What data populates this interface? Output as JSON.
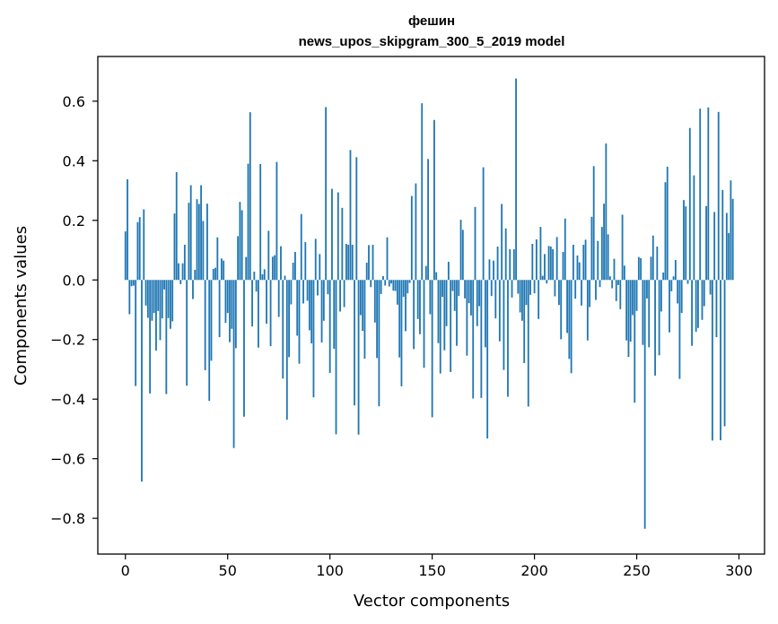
{
  "chart_data": {
    "type": "bar",
    "title": "фешин",
    "subtitle": "news_upos_skipgram_300_5_2019 model",
    "xlabel": "Vector components",
    "ylabel": "Components values",
    "xlim": [
      -13.5,
      312.5
    ],
    "ylim": [
      -0.92,
      0.75
    ],
    "xticks": [
      0,
      50,
      100,
      150,
      200,
      250,
      300
    ],
    "yticks": [
      -0.8,
      -0.6,
      -0.4,
      -0.2,
      0.0,
      0.2,
      0.4,
      0.6
    ],
    "ytick_labels": [
      "−0.8",
      "−0.6",
      "−0.4",
      "−0.2",
      "0.0",
      "0.2",
      "0.4",
      "0.6"
    ],
    "bar_color": "#1f77b4",
    "grid": false,
    "x": "0..299",
    "values": [
      0.163,
      0.338,
      -0.115,
      -0.021,
      -0.019,
      -0.356,
      0.194,
      0.211,
      -0.677,
      0.237,
      -0.086,
      -0.127,
      -0.381,
      -0.137,
      -0.111,
      -0.237,
      -0.104,
      -0.202,
      -0.129,
      -0.032,
      -0.383,
      -0.128,
      -0.164,
      -0.139,
      0.223,
      0.362,
      0.056,
      -0.014,
      0.056,
      0.118,
      -0.355,
      0.259,
      0.318,
      -0.064,
      0.034,
      0.271,
      0.255,
      0.318,
      0.198,
      -0.303,
      0.256,
      -0.406,
      -0.271,
      0.037,
      0.041,
      0.143,
      -0.192,
      0.072,
      0.065,
      -0.144,
      -0.111,
      -0.209,
      -0.164,
      -0.564,
      -0.229,
      0.147,
      0.262,
      0.234,
      -0.459,
      0.077,
      0.39,
      0.563,
      -0.156,
      0.028,
      -0.039,
      -0.227,
      0.389,
      0.019,
      0.036,
      -0.147,
      0.165,
      -0.222,
      0.078,
      0.083,
      0.396,
      -0.124,
      0.113,
      -0.331,
      0.014,
      -0.469,
      -0.259,
      -0.082,
      0.058,
      0.094,
      -0.187,
      -0.281,
      0.221,
      -0.079,
      0.127,
      -0.07,
      -0.169,
      -0.213,
      -0.394,
      0.138,
      -0.052,
      0.087,
      -0.21,
      -0.137,
      0.58,
      -0.048,
      -0.312,
      0.306,
      -0.231,
      -0.518,
      0.294,
      -0.106,
      0.242,
      -0.091,
      0.121,
      0.118,
      0.436,
      0.118,
      -0.421,
      0.412,
      -0.519,
      -0.118,
      -0.171,
      -0.264,
      0.058,
      0.117,
      -0.024,
      0.118,
      -0.143,
      -0.262,
      -0.424,
      -0.047,
      0.013,
      -0.019,
      0.143,
      -0.022,
      -0.012,
      -0.036,
      -0.037,
      -0.083,
      -0.26,
      -0.357,
      -0.057,
      -0.172,
      -0.045,
      -0.01,
      0.282,
      -0.232,
      0.324,
      -0.131,
      -0.182,
      0.593,
      -0.295,
      0.047,
      0.406,
      -0.115,
      -0.461,
      0.537,
      0.026,
      -0.212,
      -0.314,
      -0.057,
      -0.236,
      -0.155,
      0.061,
      -0.309,
      -0.037,
      -0.104,
      -0.221,
      -0.054,
      0.202,
      0.168,
      -0.062,
      -0.254,
      -0.078,
      -0.119,
      -0.398,
      0.245,
      -0.155,
      -0.088,
      -0.396,
      0.378,
      -0.226,
      -0.532,
      0.069,
      -0.054,
      0.065,
      -0.129,
      0.112,
      -0.206,
      0.255,
      -0.302,
      0.173,
      -0.392,
      0.103,
      -0.059,
      0.103,
      0.676,
      -0.046,
      -0.109,
      -0.137,
      -0.279,
      -0.084,
      -0.425,
      -0.05,
      0.121,
      -0.045,
      0.136,
      -0.131,
      0.178,
      0.014,
      0.087,
      -0.012,
      0.114,
      0.112,
      0.103,
      -0.055,
      0.144,
      -0.084,
      -0.199,
      0.094,
      0.206,
      -0.178,
      -0.265,
      -0.313,
      0.118,
      -0.063,
      0.082,
      0.059,
      -0.086,
      0.118,
      0.135,
      -0.203,
      -0.091,
      0.212,
      0.382,
      -0.067,
      0.131,
      -0.024,
      0.178,
      0.256,
      0.458,
      0.153,
      0.012,
      -0.028,
      0.071,
      -0.071,
      -0.017,
      -0.098,
      0.219,
      0.048,
      -0.203,
      -0.258,
      -0.207,
      -0.118,
      -0.412,
      -0.104,
      0.077,
      0.073,
      -0.218,
      -0.835,
      -0.062,
      -0.226,
      0.078,
      0.149,
      -0.321,
      0.112,
      -0.253,
      -0.106,
      0.025,
      0.328,
      0.38,
      -0.176,
      -0.038,
      0.012,
      0.067,
      -0.079,
      -0.332,
      -0.111,
      0.268,
      0.247,
      -0.013,
      0.51,
      -0.221,
      0.351,
      -0.174,
      -0.161,
      0.575,
      -0.134,
      -0.088,
      0.248,
      0.579,
      -0.049,
      -0.539,
      0.228,
      -0.192,
      0.564,
      -0.538,
      0.302,
      -0.491,
      0.225,
      0.157,
      0.334,
      0.272
    ]
  }
}
